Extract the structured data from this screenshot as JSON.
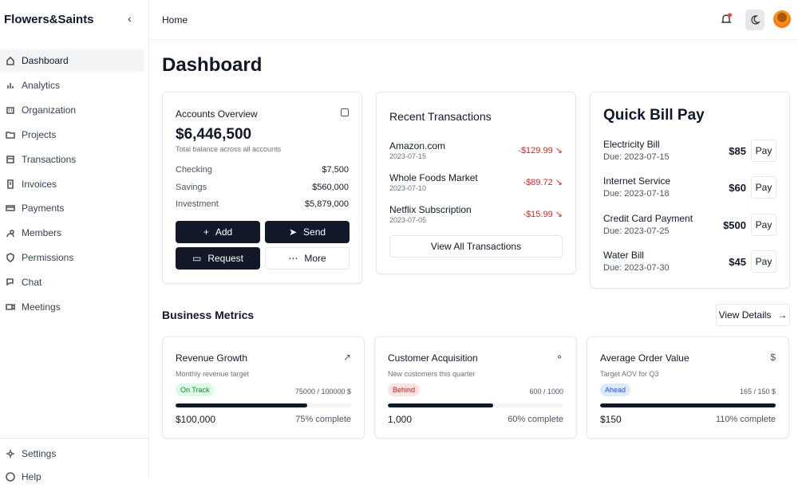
{
  "sidebar": {
    "brand": "Flowers&Saints",
    "nav": [
      "Dashboard",
      "Analytics",
      "Organization",
      "Projects",
      "Transactions",
      "Invoices",
      "Payments",
      "Members",
      "Permissions",
      "Chat",
      "Meetings"
    ],
    "footer_nav": [
      "Settings",
      "Help"
    ]
  },
  "header": {
    "breadcrumb": "Home"
  },
  "page_title": "Dashboard",
  "accounts": {
    "title": "Accounts Overview",
    "total": "$6,446,500",
    "caption": "Total balance across all accounts",
    "rows": [
      {
        "label": "Checking",
        "amount": "$7,500"
      },
      {
        "label": "Savings",
        "amount": "$560,000"
      },
      {
        "label": "Investment",
        "amount": "$5,879,000"
      }
    ],
    "actions": [
      "Add",
      "Send",
      "Request",
      "More"
    ]
  },
  "transactions": {
    "title": "Recent Transactions",
    "items": [
      {
        "name": "Amazon.com",
        "date": "2023-07-15",
        "amount": "-$129.99"
      },
      {
        "name": "Whole Foods Market",
        "date": "2023-07-10",
        "amount": "-$89.72"
      },
      {
        "name": "Netflix Subscription",
        "date": "2023-07-05",
        "amount": "-$15.99"
      }
    ],
    "button": "View All Transactions"
  },
  "bills": {
    "title": "Quick Bill Pay",
    "items": [
      {
        "name": "Electricity Bill",
        "due": "Due: 2023-07-15",
        "amount": "$85",
        "action": "Pay"
      },
      {
        "name": "Internet Service",
        "due": "Due: 2023-07-18",
        "amount": "$60",
        "action": "Pay"
      },
      {
        "name": "Credit Card Payment",
        "due": "Due: 2023-07-25",
        "amount": "$500",
        "action": "Pay"
      },
      {
        "name": "Water Bill",
        "due": "Due: 2023-07-30",
        "amount": "$45",
        "action": "Pay"
      }
    ]
  },
  "metrics": {
    "title": "Business Metrics",
    "button": "View Details",
    "cards": [
      {
        "title": "Revenue Growth",
        "subtitle": "Monthly revenue target",
        "status": "On Track",
        "ratio": "75000 / 100000 $",
        "value": "$100,000",
        "progress": {
          "value": 75,
          "label": "75% complete"
        }
      },
      {
        "title": "Customer Acquisition",
        "subtitle": "New customers this quarter",
        "status": "Behind",
        "ratio": "600 / 1000",
        "value": "1,000",
        "progress": {
          "value": 60,
          "label": "60% complete"
        }
      },
      {
        "title": "Average Order Value",
        "subtitle": "Target AOV for Q3",
        "status": "Ahead",
        "ratio": "165 / 150 $",
        "value": "$150",
        "progress": {
          "value": 110,
          "label": "110% complete"
        }
      }
    ]
  }
}
